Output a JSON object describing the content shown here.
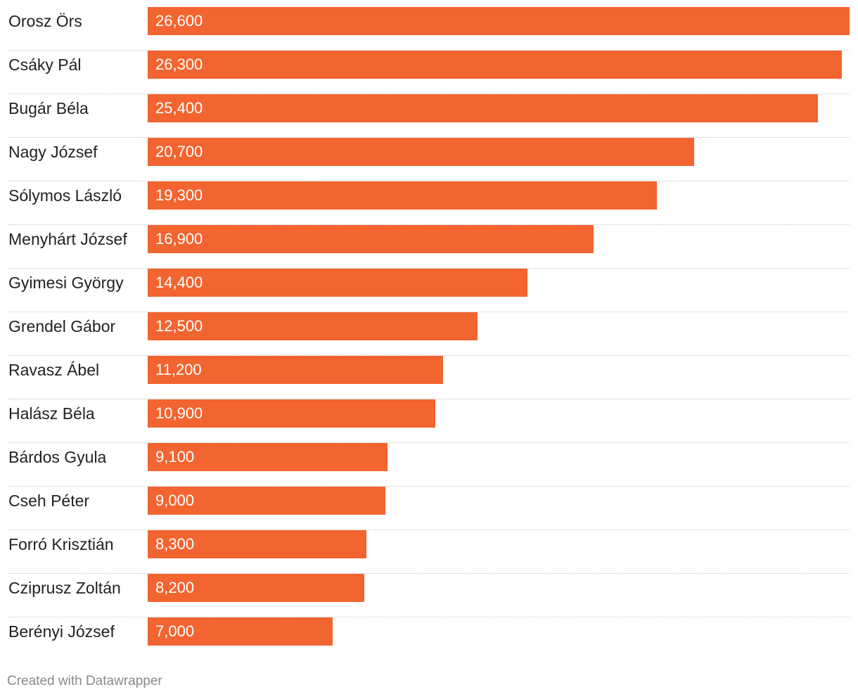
{
  "chart_data": {
    "type": "bar",
    "orientation": "horizontal",
    "categories": [
      "Orosz Örs",
      "Csáky Pál",
      "Bugár Béla",
      "Nagy József",
      "Sólymos László",
      "Menyhárt József",
      "Gyimesi György",
      "Grendel Gábor",
      "Ravasz Ábel",
      "Halász Béla",
      "Bárdos Gyula",
      "Cseh Péter",
      "Forró Krisztián",
      "Cziprusz Zoltán",
      "Berényi József"
    ],
    "values": [
      26600,
      26300,
      25400,
      20700,
      19300,
      16900,
      14400,
      12500,
      11200,
      10900,
      9100,
      9000,
      8300,
      8200,
      7000
    ],
    "value_labels": [
      "26,600",
      "26,300",
      "25,400",
      "20,700",
      "19,300",
      "16,900",
      "14,400",
      "12,500",
      "11,200",
      "10,900",
      "9,100",
      "9,000",
      "8,300",
      "8,200",
      "7,000"
    ],
    "xlim": [
      0,
      26600
    ],
    "bar_color": "#f26430",
    "grid": false,
    "legend": "none"
  },
  "footer": {
    "credit": "Created with Datawrapper"
  }
}
